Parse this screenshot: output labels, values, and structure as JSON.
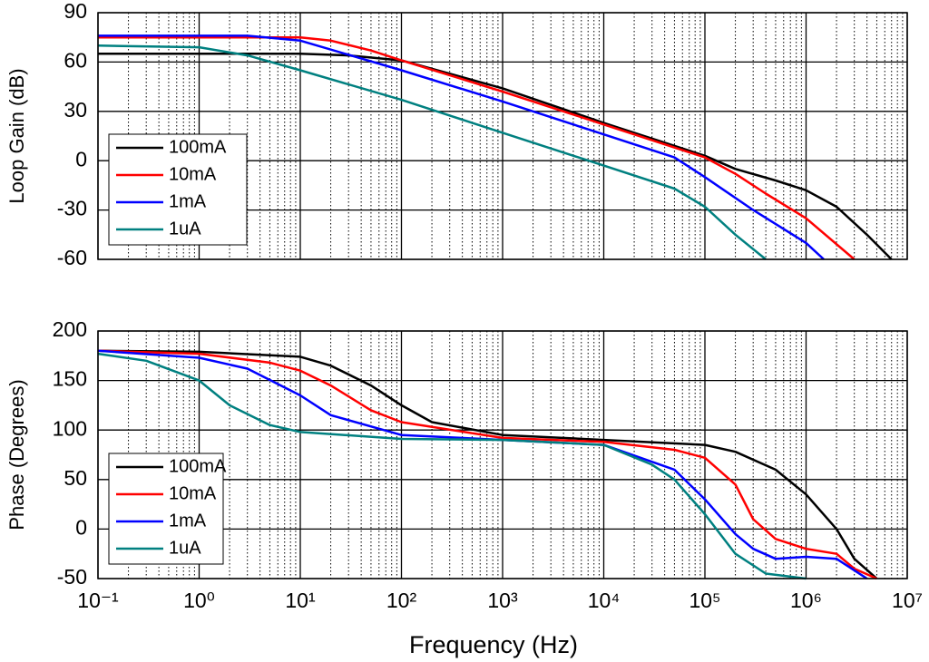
{
  "chart_data": [
    {
      "type": "line",
      "ylabel": "Loop Gain (dB)",
      "log_x": true,
      "grid": true,
      "minor_grid": true,
      "legend": "lower left",
      "xlim": [
        0.1,
        10000000
      ],
      "xticks": [
        0.1,
        1,
        10,
        100,
        1000,
        10000,
        100000,
        1000000,
        10000000
      ],
      "ylim": [
        -60,
        90
      ],
      "yticks": [
        -60,
        -30,
        0,
        30,
        60,
        90
      ],
      "series": [
        {
          "name": "100mA",
          "color": "#000000",
          "x": [
            0.1,
            1,
            10,
            30,
            100,
            1000,
            10000,
            100000,
            200000,
            500000,
            1000000,
            2000000,
            4000000,
            7000000
          ],
          "values": [
            65,
            65,
            65,
            64,
            61,
            44,
            23,
            3,
            -5,
            -12,
            -18,
            -28,
            -45,
            -60
          ]
        },
        {
          "name": "10mA",
          "color": "#ff0000",
          "x": [
            0.1,
            1,
            10,
            20,
            50,
            100,
            1000,
            10000,
            100000,
            200000,
            400000,
            1000000,
            3000000
          ],
          "values": [
            75,
            75,
            75,
            73,
            67,
            61,
            42,
            22,
            2,
            -8,
            -20,
            -35,
            -60
          ]
        },
        {
          "name": "1mA",
          "color": "#0000ff",
          "x": [
            0.1,
            1,
            3,
            10,
            100,
            1000,
            10000,
            50000,
            100000,
            300000,
            1000000,
            1500000
          ],
          "values": [
            76,
            76,
            76,
            73,
            55,
            36,
            16,
            2,
            -10,
            -30,
            -50,
            -60
          ]
        },
        {
          "name": "1uA",
          "color": "#008080",
          "x": [
            0.1,
            1,
            3,
            10,
            100,
            1000,
            10000,
            50000,
            100000,
            200000,
            400000
          ],
          "values": [
            70,
            69,
            64,
            55,
            37,
            17,
            -3,
            -17,
            -28,
            -45,
            -60
          ]
        }
      ]
    },
    {
      "type": "line",
      "ylabel": "Phase (Degrees)",
      "xlabel": "Frequency (Hz)",
      "log_x": true,
      "grid": true,
      "minor_grid": true,
      "legend": "lower left",
      "xlim": [
        0.1,
        10000000
      ],
      "xticks": [
        {
          "value": 0.1,
          "label": "10⁻¹"
        },
        {
          "value": 1,
          "label": "10⁰"
        },
        {
          "value": 10,
          "label": "10¹"
        },
        {
          "value": 100,
          "label": "10²"
        },
        {
          "value": 1000,
          "label": "10³"
        },
        {
          "value": 10000,
          "label": "10⁴"
        },
        {
          "value": 100000,
          "label": "10⁵"
        },
        {
          "value": 1000000,
          "label": "10⁶"
        },
        {
          "value": 10000000,
          "label": "10⁷"
        }
      ],
      "ylim": [
        -50,
        200
      ],
      "yticks": [
        -50,
        0,
        50,
        100,
        150,
        200
      ],
      "series": [
        {
          "name": "100mA",
          "color": "#000000",
          "x": [
            0.1,
            1,
            10,
            20,
            50,
            100,
            200,
            1000,
            10000,
            100000,
            200000,
            500000,
            1000000,
            2000000,
            3000000,
            5000000
          ],
          "values": [
            180,
            179,
            174,
            165,
            145,
            125,
            108,
            95,
            90,
            85,
            78,
            60,
            35,
            0,
            -30,
            -50
          ]
        },
        {
          "name": "10mA",
          "color": "#ff0000",
          "x": [
            0.1,
            1,
            5,
            10,
            20,
            50,
            100,
            1000,
            10000,
            50000,
            100000,
            200000,
            300000,
            500000,
            1000000,
            2000000,
            3000000,
            5000000
          ],
          "values": [
            180,
            177,
            168,
            160,
            145,
            120,
            108,
            92,
            88,
            80,
            72,
            45,
            10,
            -10,
            -20,
            -25,
            -40,
            -50
          ]
        },
        {
          "name": "1mA",
          "color": "#0000ff",
          "x": [
            0.1,
            1,
            3,
            10,
            20,
            100,
            1000,
            10000,
            50000,
            100000,
            200000,
            300000,
            500000,
            1000000,
            2000000,
            4000000
          ],
          "values": [
            180,
            173,
            162,
            135,
            115,
            95,
            90,
            85,
            60,
            30,
            -5,
            -20,
            -30,
            -28,
            -30,
            -50
          ]
        },
        {
          "name": "1uA",
          "color": "#008080",
          "x": [
            0.1,
            0.3,
            1,
            2,
            5,
            10,
            100,
            1000,
            10000,
            30000,
            50000,
            100000,
            200000,
            400000,
            1000000
          ],
          "values": [
            177,
            170,
            150,
            125,
            105,
            98,
            91,
            90,
            85,
            65,
            50,
            15,
            -25,
            -45,
            -50
          ]
        }
      ]
    }
  ]
}
